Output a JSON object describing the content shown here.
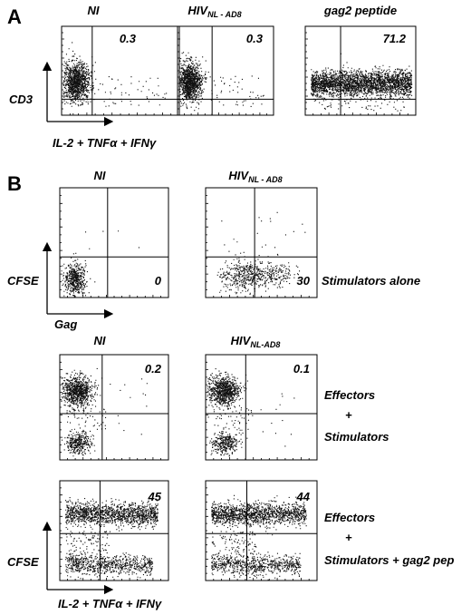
{
  "panelA": {
    "letter": "A",
    "ylabel": "CD3",
    "xlabel": "IL-2 + TNFα + IFNγ",
    "plots": [
      {
        "title": "NI",
        "sub": "",
        "value": "0.3",
        "pattern": "blob-low"
      },
      {
        "title": "HIV",
        "sub": "NL - AD8",
        "value": "0.3",
        "pattern": "blob-low"
      },
      {
        "title": "gag2 peptide",
        "sub": "",
        "value": "71.2",
        "pattern": "wide-band"
      }
    ]
  },
  "panelB": {
    "letter": "B",
    "row1": {
      "ylabel": "CFSE",
      "xlabel": "Gag",
      "side_label": "Stimulators alone",
      "plots": [
        {
          "title": "NI",
          "sub": "",
          "value": "0",
          "pattern": "low-left"
        },
        {
          "title": "HIV",
          "sub": "NL - AD8",
          "value": "30",
          "pattern": "low-spread"
        }
      ]
    },
    "row2": {
      "side_labels": [
        "Effectors",
        "+",
        "Stimulators"
      ],
      "plots": [
        {
          "title": "NI",
          "sub": "",
          "value": "0.2",
          "pattern": "two-blobs"
        },
        {
          "title": "HIV",
          "sub": "NL-AD8",
          "value": "0.1",
          "pattern": "two-blobs"
        }
      ]
    },
    "row3": {
      "ylabel": "CFSE",
      "xlabel": "IL-2 + TNFα + IFNγ",
      "side_labels": [
        "Effectors",
        "+",
        "Stimulators +  gag2 pep"
      ],
      "plots": [
        {
          "title": "",
          "sub": "",
          "value": "45",
          "pattern": "two-bands"
        },
        {
          "title": "",
          "sub": "",
          "value": "44",
          "pattern": "two-bands"
        }
      ]
    }
  }
}
